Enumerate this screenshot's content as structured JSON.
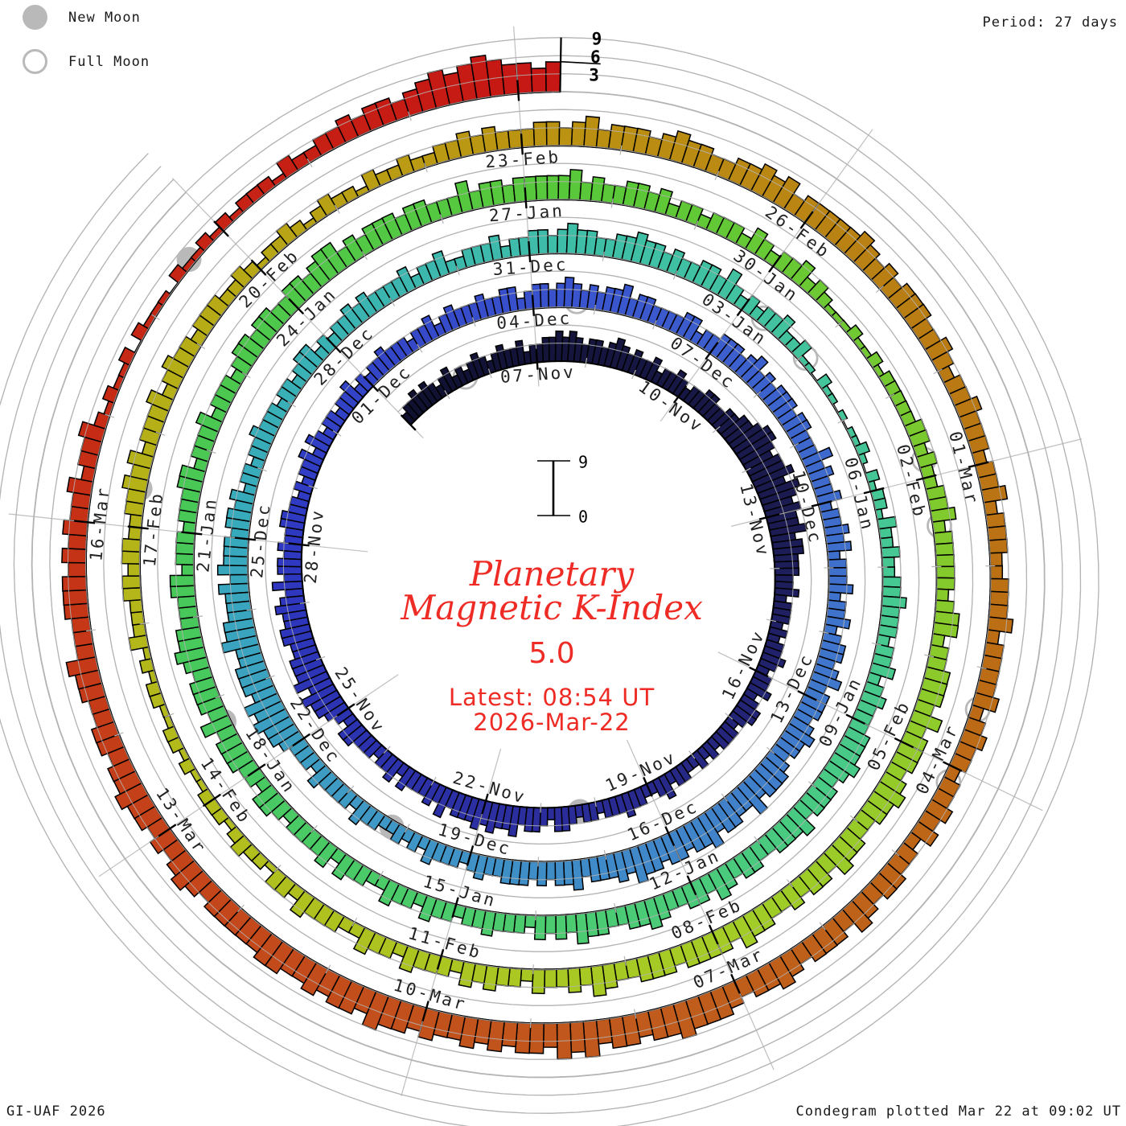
{
  "header": {
    "period": "Period: 27 days"
  },
  "legend": {
    "new_moon": "New Moon",
    "full_moon": "Full Moon"
  },
  "footer": {
    "left": "GI-UAF 2026",
    "right": "Condegram plotted Mar 22 at 09:02 UT"
  },
  "center": {
    "title1": "Planetary",
    "title2": "Magnetic K-Index",
    "value": "5.0",
    "latest1": "Latest: 08:54 UT",
    "latest2": "2026-Mar-22",
    "scale_top": "9",
    "scale_bottom": "0"
  },
  "chart_data": {
    "type": "bar",
    "subtype": "condegram-spiral",
    "title": "Planetary Magnetic K-Index",
    "current_k": 5.0,
    "latest_ut": "08:54 UT 2026-Mar-22",
    "period_days": 27,
    "hours_per_bar": 3,
    "k_range": [
      0,
      9
    ],
    "gridline_k": [
      3,
      6,
      9
    ],
    "axis_k_ticks": [
      "9",
      "6",
      "3"
    ],
    "start_date": "2025-11-04",
    "top_reference_date": "2025-11-07",
    "end": "2026-03-22 09:00 UT",
    "date_labels": [
      "07-Nov",
      "10-Nov",
      "13-Nov",
      "16-Nov",
      "19-Nov",
      "22-Nov",
      "25-Nov",
      "28-Nov",
      "01-Dec",
      "04-Dec",
      "07-Dec",
      "10-Dec",
      "13-Dec",
      "16-Dec",
      "19-Dec",
      "22-Dec",
      "25-Dec",
      "28-Dec",
      "31-Dec",
      "03-Jan",
      "06-Jan",
      "09-Jan",
      "12-Jan",
      "15-Jan",
      "18-Jan",
      "21-Jan",
      "24-Jan",
      "27-Jan",
      "30-Jan",
      "02-Feb",
      "05-Feb",
      "08-Feb",
      "11-Feb",
      "14-Feb",
      "17-Feb",
      "20-Feb",
      "23-Feb",
      "26-Feb",
      "01-Mar",
      "04-Mar",
      "07-Mar",
      "10-Mar",
      "13-Mar",
      "16-Mar"
    ],
    "color_stops": [
      [
        -3,
        "#101030"
      ],
      [
        6,
        "#1b1b50"
      ],
      [
        13,
        "#2a2c96"
      ],
      [
        21,
        "#2e38c2"
      ],
      [
        28,
        "#3a55cd"
      ],
      [
        36,
        "#4079cc"
      ],
      [
        44,
        "#3f9ac4"
      ],
      [
        48,
        "#37a9bd"
      ],
      [
        55,
        "#3fbfa6"
      ],
      [
        62,
        "#47c98f"
      ],
      [
        68,
        "#4ccb6f"
      ],
      [
        75,
        "#47c857"
      ],
      [
        82,
        "#5ac838"
      ],
      [
        88,
        "#84ca2c"
      ],
      [
        93,
        "#a5cc26"
      ],
      [
        99,
        "#b2bd1c"
      ],
      [
        104,
        "#b6ad16"
      ],
      [
        108,
        "#bb9412"
      ],
      [
        112,
        "#b97f13"
      ],
      [
        116,
        "#bc6c14"
      ],
      [
        121,
        "#c05a1d"
      ],
      [
        126,
        "#c4431a"
      ],
      [
        130,
        "#c62b15"
      ],
      [
        136,
        "#c61414"
      ]
    ],
    "moons": {
      "new_t": [
        13.3,
        43.2,
        72.7,
        102.4,
        131.6
      ],
      "full_t": [
        -1.5,
        27.7,
        57.3,
        58.05,
        86.8,
        87.55,
        116.4,
        117.15
      ]
    },
    "k3h_by_day": [
      "23343432",
      "34232343",
      "23433423",
      "34454543",
      "44345434",
      "33423343",
      "23344334",
      "45567765",
      "66757656",
      "55645544",
      "43342333",
      "23233432",
      "33423443",
      "23332323",
      "22332432",
      "23343332",
      "33234423",
      "44354454",
      "54443534",
      "33342433",
      "23334423",
      "45564655",
      "54455445",
      "43534434",
      "33443323",
      "23342432",
      "33233423",
      "23343332",
      "33423433",
      "34334423",
      "44345434",
      "34453443",
      "33344233",
      "44434534",
      "34443443",
      "33534334",
      "23343423",
      "33423342",
      "34434534",
      "44345443",
      "45554644",
      "55465545",
      "54556454",
      "44354434",
      "34443343",
      "23334232",
      "32233423",
      "33342333",
      "45565645",
      "55446554",
      "44535444",
      "34434233",
      "23343332",
      "33234423",
      "23343433",
      "33423342",
      "23334233",
      "44345443",
      "34454434",
      "33443532",
      "32334223",
      "11021101",
      "01121021",
      "22132232",
      "23343332",
      "33423433",
      "34445434",
      "44354443",
      "34434534",
      "43345443",
      "34453434",
      "23334332",
      "33423342",
      "23342433",
      "33234423",
      "34443534",
      "44345443",
      "33442333",
      "23334423",
      "33423332",
      "34434433",
      "44345534",
      "34443443",
      "33534434",
      "44445343",
      "34434233",
      "23332432",
      "33423211",
      "12112122",
      "22233232",
      "23342333",
      "33234423",
      "34443534",
      "44345443",
      "34453443",
      "43344534",
      "44434443",
      "34534334",
      "23343423",
      "33423342",
      "23334233",
      "12232122",
      "21121221",
      "12212132",
      "22332332",
      "23343423",
      "33423433",
      "23332232",
      "12232123",
      "22132232",
      "23343433",
      "34434534",
      "44345443",
      "34454534",
      "44445434",
      "34443343",
      "23343332",
      "33423332",
      "23334233",
      "33423433",
      "23343423",
      "34434534",
      "44345443",
      "45556554",
      "55465645",
      "54545445",
      "45564554",
      "54455444",
      "44345434",
      "34454434",
      "43344533",
      "34443434",
      "33423342",
      "12112021",
      "11021121",
      "21222132",
      "23343443",
      "45656765",
      "545"
    ]
  },
  "style_colors": {
    "grid_gray": "#b4b4b4",
    "moon_gray": "#b9b9b9",
    "bar_outline": "#000000",
    "text_black": "#1a1a1a",
    "accent_red": "#ee2b25"
  }
}
